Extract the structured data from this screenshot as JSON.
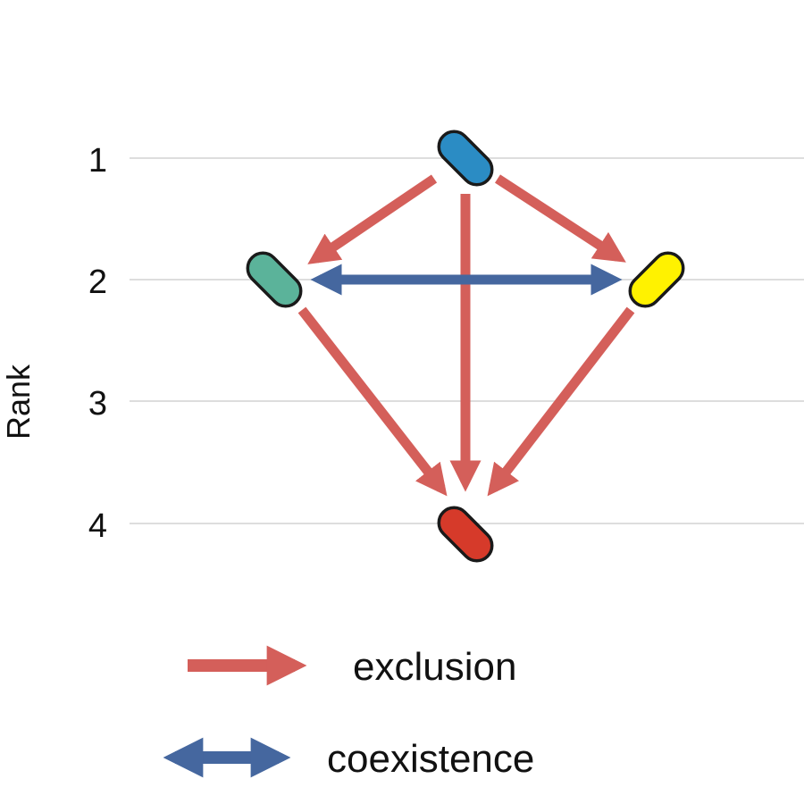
{
  "diagram": {
    "y_axis_label": "Rank",
    "ranks": [
      "1",
      "2",
      "3",
      "4"
    ],
    "nodes": [
      {
        "id": "blue",
        "rank": 1,
        "color": "#2b8cc4"
      },
      {
        "id": "green",
        "rank": 2,
        "color": "#5bb39a"
      },
      {
        "id": "yellow",
        "rank": 2,
        "color": "#fff200"
      },
      {
        "id": "red",
        "rank": 4,
        "color": "#d63a2a"
      }
    ],
    "edges": [
      {
        "from": "blue",
        "to": "green",
        "type": "exclusion"
      },
      {
        "from": "blue",
        "to": "yellow",
        "type": "exclusion"
      },
      {
        "from": "blue",
        "to": "red",
        "type": "exclusion"
      },
      {
        "from": "green",
        "to": "red",
        "type": "exclusion"
      },
      {
        "from": "yellow",
        "to": "red",
        "type": "exclusion"
      },
      {
        "from": "green",
        "to": "yellow",
        "type": "coexistence"
      }
    ],
    "legend": {
      "exclusion": "exclusion",
      "coexistence": "coexistence"
    },
    "colors": {
      "exclusion": "#d45f5a",
      "coexistence": "#45679f",
      "gridline": "#dddddd",
      "node_outline": "#1a1a1a"
    }
  }
}
